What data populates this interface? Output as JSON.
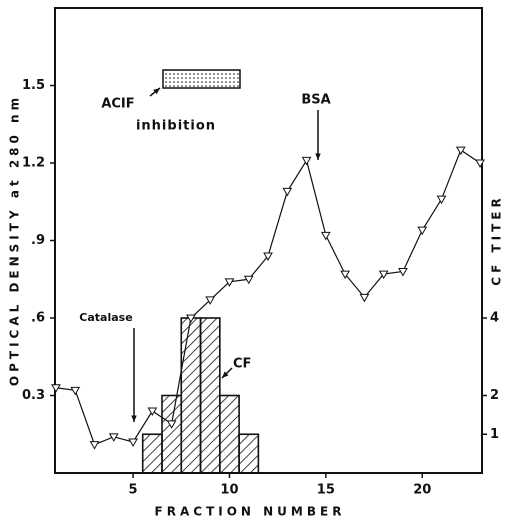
{
  "chart_data": {
    "type": "line",
    "x_label": "FRACTION NUMBER",
    "y_label": "OPTICAL DENSITY at 280 nm",
    "y2_label": "CF TITER",
    "x": [
      1,
      2,
      3,
      4,
      5,
      6,
      7,
      8,
      9,
      10,
      11,
      12,
      13,
      14,
      15,
      16,
      17,
      18,
      19,
      20,
      21,
      22,
      23
    ],
    "series": [
      {
        "color": "#111111",
        "values": [
          0.33,
          0.32,
          0.11,
          0.14,
          0.12,
          0.24,
          0.19,
          0.6,
          0.67,
          0.74,
          0.75,
          0.84,
          1.09,
          1.21,
          0.92,
          0.77,
          0.68,
          0.77,
          0.78,
          0.94,
          1.06,
          1.25,
          1.2
        ]
      }
    ],
    "histogram": {
      "axis": "y2",
      "color": "#111111",
      "bins": [
        5.5,
        6.5,
        7.5,
        8.5,
        9.5,
        10.5,
        11.5
      ],
      "counts": [
        1,
        2,
        4,
        4,
        2,
        1
      ]
    },
    "xlim": [
      0.95,
      23.1
    ],
    "xticks": [
      5,
      10,
      15,
      20
    ],
    "ylim": [
      0,
      1.8
    ],
    "yticks": [
      0.3,
      {
        "value": 0.6,
        "label": ".6"
      },
      {
        "value": 0.9,
        "label": ".9"
      },
      1.2,
      1.5
    ],
    "y2lim": [
      0,
      12
    ],
    "y2ticks": [
      1,
      2,
      4
    ],
    "annotations": {
      "catalase": "Catalase",
      "bsa": "BSA",
      "cf": "CF",
      "acif": [
        "ACIF",
        "inhibition"
      ]
    }
  }
}
